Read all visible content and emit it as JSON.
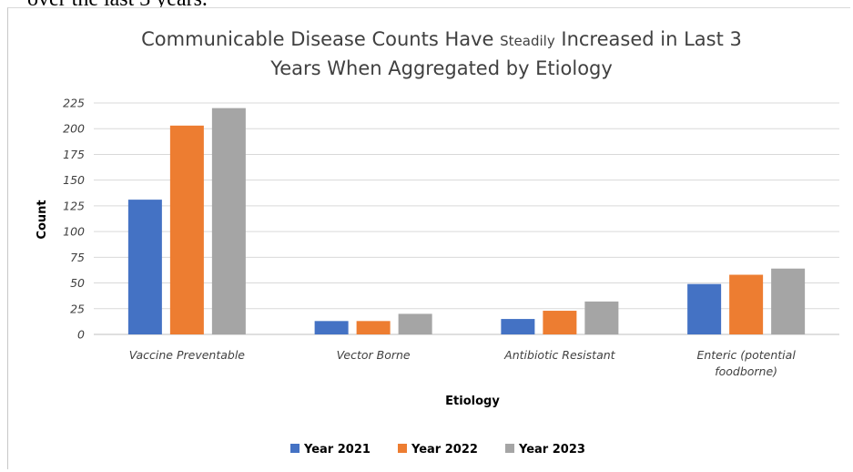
{
  "document": {
    "text_above": "over the last 3 years."
  },
  "chart_data": {
    "type": "bar",
    "title_line1_a": "Communicable Disease Counts Have ",
    "title_line1_small": "Steadily",
    "title_line1_b": " Increased in Last 3",
    "title_line2": "Years When Aggregated by Etiology",
    "xlabel": "Etiology",
    "ylabel": "Count",
    "ylim": [
      0,
      225
    ],
    "yticks": [
      0,
      25,
      50,
      75,
      100,
      125,
      150,
      175,
      200,
      225
    ],
    "grid": true,
    "legend_position": "bottom",
    "categories": [
      [
        "Vaccine Preventable"
      ],
      [
        "Vector Borne"
      ],
      [
        "Antibiotic Resistant"
      ],
      [
        "Enteric (potential",
        "foodborne)"
      ]
    ],
    "series": [
      {
        "name": "Year 2021",
        "color": "#4472c4",
        "values": [
          131,
          13,
          15,
          49
        ]
      },
      {
        "name": "Year 2022",
        "color": "#ed7d31",
        "values": [
          203,
          13,
          23,
          58
        ]
      },
      {
        "name": "Year 2023",
        "color": "#a5a5a5",
        "values": [
          220,
          20,
          32,
          64
        ]
      }
    ]
  }
}
